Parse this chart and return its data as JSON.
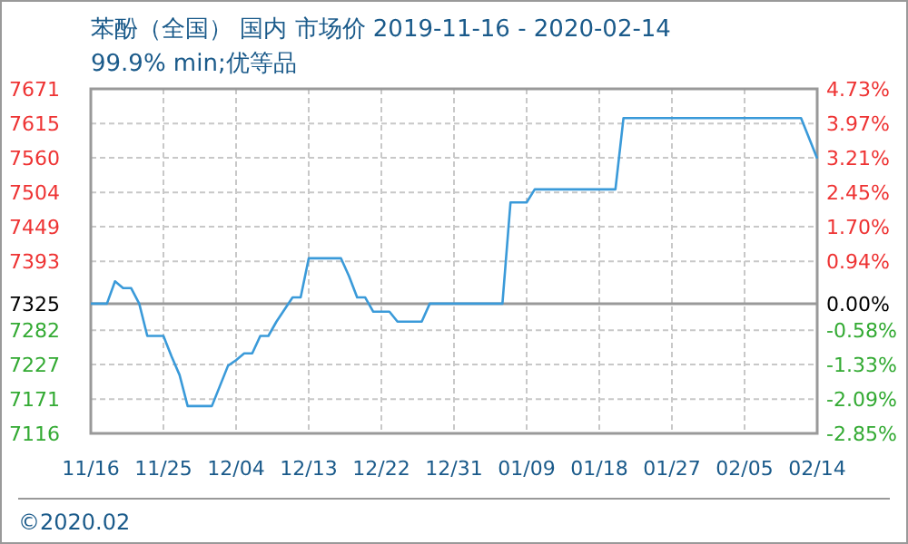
{
  "chart_data": {
    "type": "line",
    "title": "苯酚（全国） 国内 市场价 2019-11-16 - 2020-02-14",
    "subtitle": "99.9% min;优等品",
    "annotations": [
      "©2020.02"
    ],
    "x": [
      "2019-11-16",
      "2019-11-18",
      "2019-11-19",
      "2019-11-20",
      "2019-11-21",
      "2019-11-22",
      "2019-11-23",
      "2019-11-25",
      "2019-11-26",
      "2019-11-27",
      "2019-11-28",
      "2019-12-01",
      "2019-12-03",
      "2019-12-04",
      "2019-12-05",
      "2019-12-06",
      "2019-12-07",
      "2019-12-08",
      "2019-12-09",
      "2019-12-11",
      "2019-12-12",
      "2019-12-13",
      "2019-12-17",
      "2019-12-18",
      "2019-12-19",
      "2019-12-20",
      "2019-12-21",
      "2019-12-23",
      "2019-12-24",
      "2019-12-27",
      "2019-12-28",
      "2020-01-06",
      "2020-01-07",
      "2020-01-09",
      "2020-01-10",
      "2020-01-20",
      "2020-01-21",
      "2020-02-12",
      "2020-02-14"
    ],
    "series": [
      {
        "color": "#3a9ad9",
        "values": [
          7325,
          7325,
          7361,
          7350,
          7350,
          7325,
          7273,
          7273,
          7240,
          7210,
          7160,
          7160,
          7225,
          7234,
          7245,
          7245,
          7273,
          7273,
          7296,
          7335,
          7335,
          7398,
          7398,
          7369,
          7335,
          7335,
          7312,
          7312,
          7296,
          7296,
          7325,
          7325,
          7488,
          7488,
          7509,
          7509,
          7624,
          7624,
          7559
        ]
      }
    ],
    "xlim": [
      "2019-11-16",
      "2020-02-14"
    ],
    "xticks": [
      {
        "value": "2019-11-16",
        "label": "11/16"
      },
      {
        "value": "2019-11-25",
        "label": "11/25"
      },
      {
        "value": "2019-12-04",
        "label": "12/04"
      },
      {
        "value": "2019-12-13",
        "label": "12/13"
      },
      {
        "value": "2019-12-22",
        "label": "12/22"
      },
      {
        "value": "2019-12-31",
        "label": "12/31"
      },
      {
        "value": "2020-01-09",
        "label": "01/09"
      },
      {
        "value": "2020-01-18",
        "label": "01/18"
      },
      {
        "value": "2020-01-27",
        "label": "01/27"
      },
      {
        "value": "2020-02-05",
        "label": "02/05"
      },
      {
        "value": "2020-02-14",
        "label": "02/14"
      }
    ],
    "ylim": [
      7116,
      7671
    ],
    "yticks": [
      7116,
      7171,
      7227,
      7282,
      7325,
      7393,
      7449,
      7504,
      7560,
      7615,
      7671
    ],
    "y2lim": [
      -2.85,
      4.73
    ],
    "y2ticks": [
      {
        "value": -2.85,
        "label": "-2.85%"
      },
      {
        "value": -2.09,
        "label": "-2.09%"
      },
      {
        "value": -1.33,
        "label": "-1.33%"
      },
      {
        "value": -0.58,
        "label": "-0.58%"
      },
      {
        "value": 0,
        "label": "0.00%"
      },
      {
        "value": 0.94,
        "label": "0.94%"
      },
      {
        "value": 1.7,
        "label": "1.70%"
      },
      {
        "value": 2.45,
        "label": "2.45%"
      },
      {
        "value": 3.21,
        "label": "3.21%"
      },
      {
        "value": 3.97,
        "label": "3.97%"
      },
      {
        "value": 4.73,
        "label": "4.73%"
      }
    ],
    "ref_lines": [
      {
        "axis": "y",
        "value": 7325,
        "color": "#999999"
      }
    ],
    "grid": true,
    "marker": "none",
    "line_style": "solid"
  }
}
